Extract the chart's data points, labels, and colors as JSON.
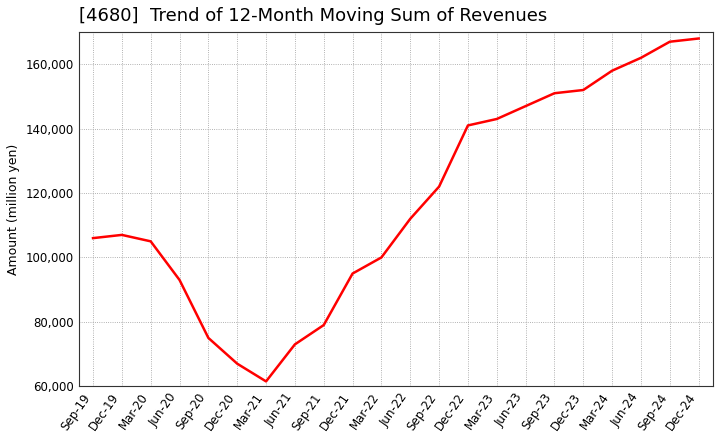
{
  "title": "[4680]  Trend of 12-Month Moving Sum of Revenues",
  "ylabel": "Amount (million yen)",
  "line_color": "#ff0000",
  "background_color": "#ffffff",
  "plot_bg_color": "#ffffff",
  "grid_color": "#999999",
  "x_labels": [
    "Sep-19",
    "Dec-19",
    "Mar-20",
    "Jun-20",
    "Sep-20",
    "Dec-20",
    "Mar-21",
    "Jun-21",
    "Sep-21",
    "Dec-21",
    "Mar-22",
    "Jun-22",
    "Sep-22",
    "Dec-22",
    "Mar-23",
    "Jun-23",
    "Sep-23",
    "Dec-23",
    "Mar-24",
    "Jun-24",
    "Sep-24",
    "Dec-24"
  ],
  "x_values": [
    0,
    1,
    2,
    3,
    4,
    5,
    6,
    7,
    8,
    9,
    10,
    11,
    12,
    13,
    14,
    15,
    16,
    17,
    18,
    19,
    20,
    21
  ],
  "y_values": [
    106000,
    107000,
    105000,
    93000,
    75000,
    67000,
    61500,
    73000,
    79000,
    95000,
    100000,
    112000,
    122000,
    141000,
    143000,
    147000,
    151000,
    152000,
    158000,
    162000,
    167000,
    168000
  ],
  "ylim": [
    60000,
    170000
  ],
  "yticks": [
    60000,
    80000,
    100000,
    120000,
    140000,
    160000
  ],
  "title_fontsize": 13,
  "axis_fontsize": 9,
  "tick_fontsize": 8.5,
  "line_width": 1.8
}
